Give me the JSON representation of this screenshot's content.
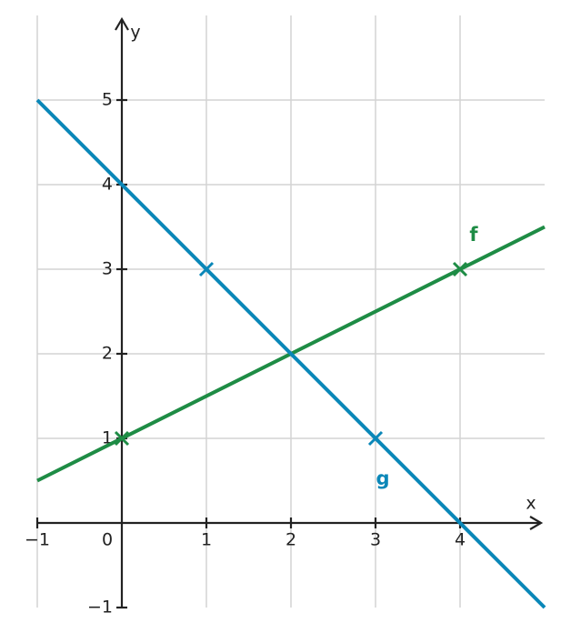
{
  "chart_data": {
    "type": "line",
    "x_label": "x",
    "y_label": "y",
    "xlim": [
      -1,
      5
    ],
    "ylim": [
      -1,
      6
    ],
    "xticks": [
      {
        "value": -1,
        "label": "−1"
      },
      0,
      1,
      2,
      3,
      4
    ],
    "yticks": [
      {
        "value": -1,
        "label": "−1"
      },
      1,
      2,
      3,
      4,
      5
    ],
    "grid": true,
    "series": [
      {
        "name": "f",
        "color": "#1e8c45",
        "x": [
          -1,
          5
        ],
        "values": [
          0.5,
          3.5
        ],
        "points": {
          "x": [
            0,
            4
          ],
          "values": [
            1,
            3
          ]
        }
      },
      {
        "name": "g",
        "color": "#0a87b8",
        "x": [
          -1,
          5
        ],
        "values": [
          5,
          -1
        ],
        "points": {
          "x": [
            1,
            3
          ],
          "values": [
            3,
            1
          ]
        }
      }
    ]
  }
}
